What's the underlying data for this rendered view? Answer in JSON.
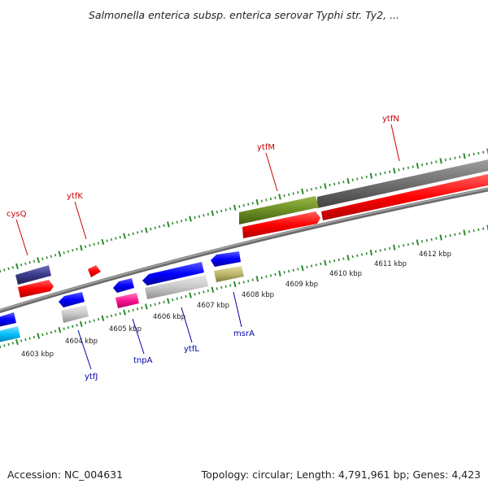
{
  "title": "Salmonella enterica subsp. enterica serovar Typhi str. Ty2, ...",
  "footer": {
    "accession": "Accession: NC_004631",
    "summary": "Topology: circular; Length: 4,791,961 bp; Genes: 4,423"
  },
  "scale_labels": [
    "4603 kbp",
    "4604 kbp",
    "4605 kbp",
    "4606 kbp",
    "4607 kbp",
    "4608 kbp",
    "4609 kbp",
    "4610 kbp",
    "4611 kbp",
    "4612 kbp"
  ],
  "gene_labels": [
    {
      "name": "cysQ",
      "strand": "forward"
    },
    {
      "name": "ytfK",
      "strand": "forward"
    },
    {
      "name": "ytfM",
      "strand": "forward"
    },
    {
      "name": "ytfN",
      "strand": "forward"
    },
    {
      "name": "ytfJ",
      "strand": "reverse"
    },
    {
      "name": "tnpA",
      "strand": "reverse"
    },
    {
      "name": "ytfL",
      "strand": "reverse"
    },
    {
      "name": "msrA",
      "strand": "reverse"
    }
  ],
  "colors": {
    "forward_label": "#cc0000",
    "reverse_label": "#0000aa",
    "tick": "#2e8b2e",
    "backbone": "#808080",
    "forward_gene": "#ff1010",
    "reverse_gene": "#1010ee",
    "olive": "#6b8e23",
    "gray_block": "#c8c8c8",
    "navy": "#3a3a8a",
    "pink": "#ff1493",
    "khaki": "#bdb76b",
    "cyan": "#00bfff",
    "dark_gray": "#707070"
  }
}
